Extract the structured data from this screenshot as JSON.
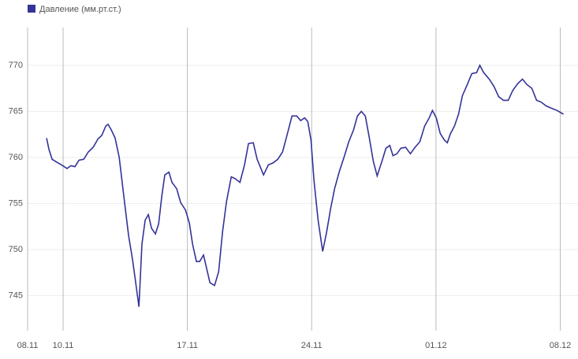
{
  "chart_data": {
    "type": "line",
    "x": [
      1.07,
      1.2,
      1.38,
      1.64,
      1.91,
      2.22,
      2.44,
      2.67,
      2.89,
      3.16,
      3.42,
      3.69,
      3.96,
      4.18,
      4.4,
      4.53,
      4.71,
      4.93,
      5.16,
      5.42,
      5.69,
      5.91,
      6.09,
      6.27,
      6.44,
      6.62,
      6.8,
      6.98,
      7.2,
      7.38,
      7.56,
      7.73,
      7.96,
      8.13,
      8.4,
      8.62,
      8.89,
      9.11,
      9.29,
      9.51,
      9.69,
      9.91,
      10.09,
      10.27,
      10.53,
      10.76,
      10.98,
      11.2,
      11.47,
      11.69,
      11.96,
      12.22,
      12.44,
      12.71,
      12.93,
      13.29,
      13.56,
      13.82,
      14.09,
      14.36,
      14.58,
      14.89,
      15.16,
      15.38,
      15.6,
      15.78,
      15.96,
      16.13,
      16.36,
      16.62,
      16.84,
      17.07,
      17.29,
      17.56,
      17.82,
      18.09,
      18.36,
      18.58,
      18.8,
      19.02,
      19.24,
      19.47,
      19.69,
      19.96,
      20.18,
      20.4,
      20.58,
      20.8,
      21.02,
      21.29,
      21.56,
      21.82,
      22.09,
      22.36,
      22.62,
      22.8,
      23.02,
      23.24,
      23.47,
      23.64,
      23.82,
      24.04,
      24.27,
      24.49,
      24.76,
      25.02,
      25.29,
      25.47,
      25.69,
      26.0,
      26.27,
      26.53,
      26.8,
      27.07,
      27.33,
      27.6,
      27.87,
      28.13,
      28.4,
      28.67,
      28.93,
      29.2,
      29.56,
      29.82,
      30.18
    ],
    "series": [
      {
        "name": "Давление (мм.рт.ст.)",
        "color": "#333399",
        "values": [
          762.1,
          760.9,
          759.8,
          759.5,
          759.2,
          758.8,
          759.1,
          759.0,
          759.7,
          759.8,
          760.6,
          761.1,
          762.0,
          762.4,
          763.4,
          763.6,
          763.0,
          762.1,
          760.0,
          755.8,
          751.5,
          748.9,
          746.4,
          743.8,
          750.6,
          753.2,
          753.8,
          752.3,
          751.7,
          752.8,
          755.8,
          758.1,
          758.4,
          757.3,
          756.6,
          755.1,
          754.3,
          752.9,
          750.6,
          748.7,
          748.7,
          749.4,
          747.9,
          746.4,
          746.1,
          747.6,
          751.9,
          755.2,
          757.9,
          757.7,
          757.3,
          759.2,
          761.5,
          761.6,
          759.8,
          758.1,
          759.2,
          759.4,
          759.8,
          760.6,
          762.2,
          764.5,
          764.5,
          764.0,
          764.3,
          763.9,
          761.9,
          757.5,
          753.2,
          749.8,
          751.9,
          754.5,
          756.6,
          758.5,
          760.0,
          761.7,
          763.0,
          764.5,
          765.0,
          764.5,
          762.2,
          759.6,
          758.0,
          759.6,
          761.0,
          761.3,
          760.2,
          760.4,
          761.0,
          761.1,
          760.4,
          761.1,
          761.7,
          763.4,
          764.3,
          765.1,
          764.3,
          762.6,
          761.9,
          761.6,
          762.6,
          763.4,
          764.7,
          766.7,
          767.9,
          769.1,
          769.2,
          770.0,
          769.2,
          768.5,
          767.7,
          766.6,
          766.2,
          766.2,
          767.3,
          768.0,
          768.5,
          767.9,
          767.5,
          766.2,
          766.0,
          765.6,
          765.3,
          765.1,
          764.7
        ]
      }
    ],
    "xlim": [
      0,
      31
    ],
    "xticks": [
      {
        "value": 0,
        "label": "08.11"
      },
      {
        "value": 2,
        "label": "10.11"
      },
      {
        "value": 9,
        "label": "17.11"
      },
      {
        "value": 16,
        "label": "24.11"
      },
      {
        "value": 23,
        "label": "01.12"
      },
      {
        "value": 30,
        "label": "08.12"
      }
    ],
    "ylim": [
      741.2,
      774.1
    ],
    "yticks": [
      745,
      750,
      755,
      760,
      765,
      770
    ],
    "grid": true,
    "legend": "top-left"
  }
}
